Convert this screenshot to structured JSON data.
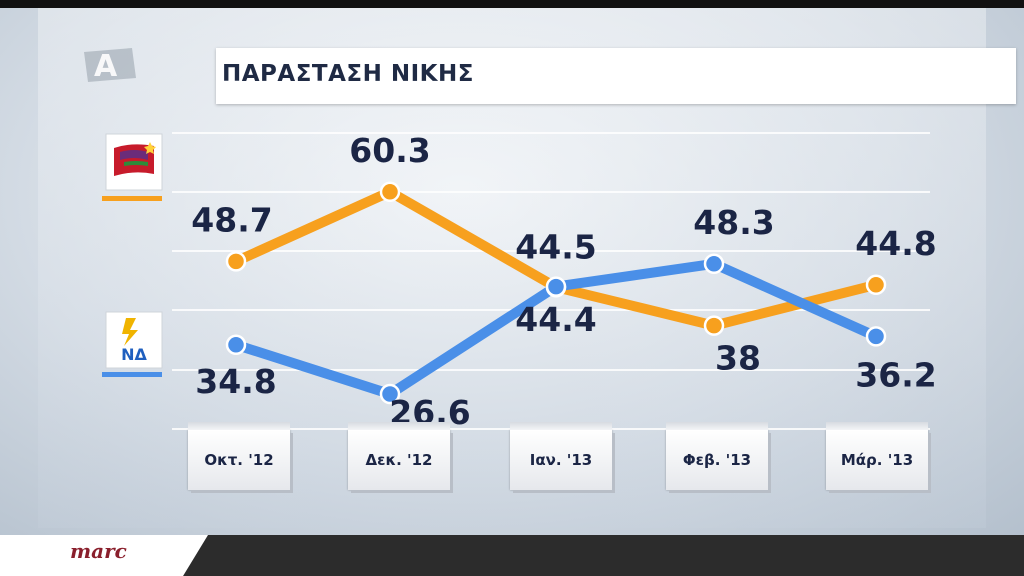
{
  "header": {
    "title": "ΠΑΡΑΣΤΑΣΗ ΝΙΚΗΣ"
  },
  "channel_logo": {
    "icon": "alpha-channel-logo-icon"
  },
  "parties": [
    {
      "icon": "syriza-flag-logo-icon",
      "color": "#F7A01E"
    },
    {
      "icon": "nd-logo-icon",
      "label": "ΝΔ",
      "color": "#4A8FE8"
    }
  ],
  "source": {
    "label": "marc"
  },
  "chart_data": {
    "type": "line",
    "categories": [
      "Οκτ. '12",
      "Δεκ. '12",
      "Ιαν. '13",
      "Φεβ. '13",
      "Μάρ. '13"
    ],
    "series": [
      {
        "color": "#F7A01E",
        "values": [
          48.7,
          60.3,
          44.4,
          38,
          44.8
        ],
        "labels": [
          "48.7",
          "60.3",
          "44.4",
          "38",
          "44.8"
        ]
      },
      {
        "color": "#4A8FE8",
        "values": [
          34.8,
          26.6,
          44.5,
          48.3,
          36.2
        ],
        "labels": [
          "34.8",
          "26.6",
          "44.5",
          "48.3",
          "36.2"
        ]
      }
    ],
    "title": "ΠΑΡΑΣΤΑΣΗ ΝΙΚΗΣ",
    "xlabel": "",
    "ylabel": "",
    "grid": true,
    "legend": "left"
  }
}
